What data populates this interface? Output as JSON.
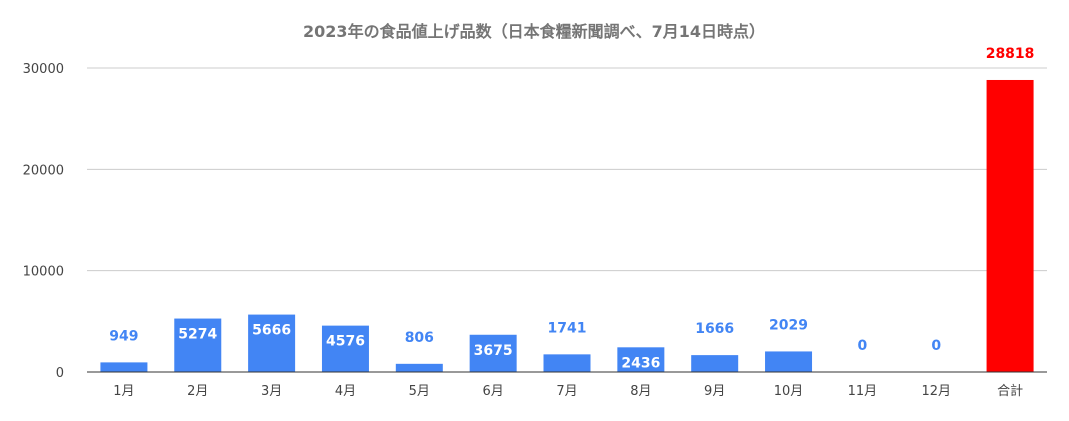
{
  "chart_data": {
    "type": "bar",
    "title": "2023年の食品値上げ品数（日本食糧新聞調べ、7月14日時点）",
    "xlabel": "",
    "ylabel": "",
    "categories": [
      "1月",
      "2月",
      "3月",
      "4月",
      "5月",
      "6月",
      "7月",
      "8月",
      "9月",
      "10月",
      "11月",
      "12月",
      "合計"
    ],
    "values": [
      949,
      5274,
      5666,
      4576,
      806,
      3675,
      1741,
      2436,
      1666,
      2029,
      0,
      0,
      28818
    ],
    "ylim": [
      0,
      30000
    ],
    "yticks": [
      "0",
      "10000",
      "20000",
      "30000"
    ],
    "grid": true,
    "legend": "none",
    "colors": {
      "bar": "#4285f4",
      "total_bar": "#ff0000",
      "label_outside": "#4285f4",
      "label_inside": "#ffffff",
      "total_label": "#ff0000",
      "grid": "#cccccc",
      "axis": "#333333"
    }
  }
}
